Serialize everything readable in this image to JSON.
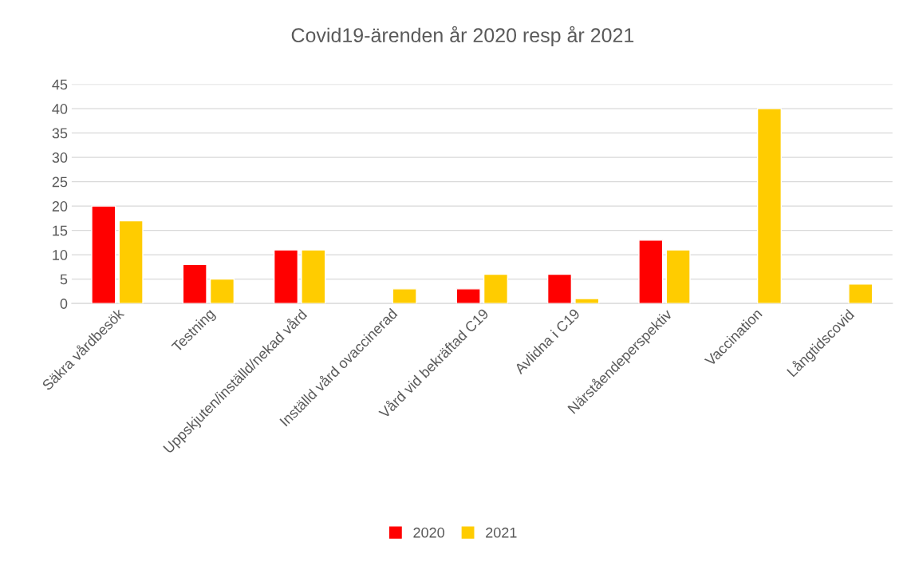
{
  "chart_data": {
    "type": "bar",
    "title": "Covid19-ärenden år 2020 resp år 2021",
    "categories": [
      "Säkra vårdbesök",
      "Testning",
      "Uppskjuten/inställd/nekad vård",
      "Inställd vård ovaccinerad",
      "Vård vid bekräftad C19",
      "Avlidna i C19",
      "Närståendeperspektiv",
      "Vaccination",
      "Långtidscovid"
    ],
    "series": [
      {
        "name": "2020",
        "color": "#ff0000",
        "values": [
          20,
          8,
          11,
          null,
          3,
          6,
          13,
          null,
          null
        ]
      },
      {
        "name": "2021",
        "color": "#ffcc00",
        "values": [
          17,
          5,
          11,
          3,
          6,
          1,
          11,
          40,
          4
        ]
      }
    ],
    "ylim": [
      0,
      45
    ],
    "yticks": [
      0,
      5,
      10,
      15,
      20,
      25,
      30,
      35,
      40,
      45
    ],
    "grid": "y",
    "legend": "bottom"
  }
}
